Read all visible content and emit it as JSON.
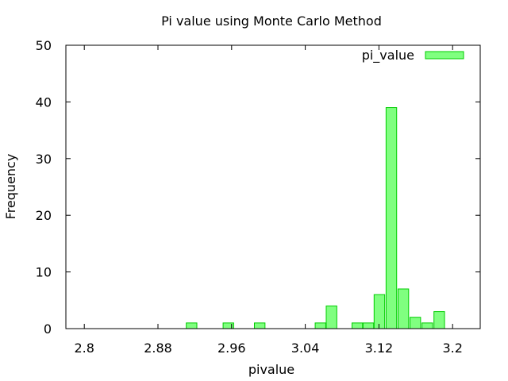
{
  "chart_data": {
    "type": "bar",
    "title": "Pi value using Monte Carlo Method",
    "xlabel": "pivalue",
    "ylabel": "Frequency",
    "xlim": [
      2.78,
      3.23
    ],
    "ylim": [
      0,
      50
    ],
    "xticks": [
      "2.8",
      "2.88",
      "2.96",
      "3.04",
      "3.12",
      "3.2"
    ],
    "yticks": [
      "0",
      "10",
      "20",
      "30",
      "40",
      "50"
    ],
    "grid": false,
    "legend_position": "top-right",
    "series": [
      {
        "name": "pi_value",
        "color": "#80ff80",
        "edge_color": "#00cc00",
        "bin_width": 0.0115,
        "bars": [
          {
            "x": 2.9165,
            "value": 1
          },
          {
            "x": 2.9565,
            "value": 1
          },
          {
            "x": 2.9905,
            "value": 1
          },
          {
            "x": 3.0565,
            "value": 1
          },
          {
            "x": 3.0685,
            "value": 4
          },
          {
            "x": 3.0965,
            "value": 1
          },
          {
            "x": 3.1085,
            "value": 1
          },
          {
            "x": 3.1205,
            "value": 6
          },
          {
            "x": 3.1335,
            "value": 39
          },
          {
            "x": 3.1465,
            "value": 7
          },
          {
            "x": 3.1595,
            "value": 2
          },
          {
            "x": 3.1725,
            "value": 1
          },
          {
            "x": 3.1855,
            "value": 3
          }
        ]
      }
    ]
  }
}
